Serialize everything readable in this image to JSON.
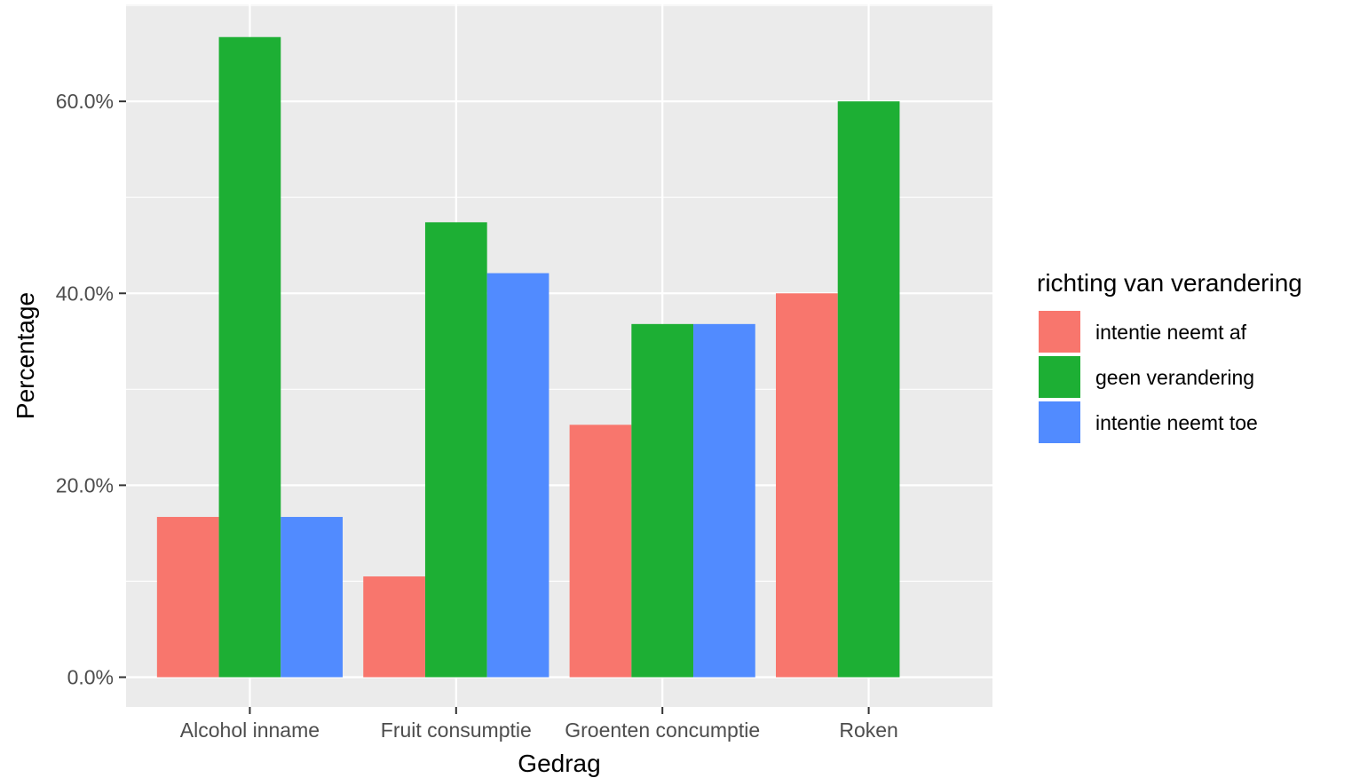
{
  "chart_data": {
    "type": "bar",
    "xlabel": "Gedrag",
    "ylabel": "Percentage",
    "categories": [
      "Alcohol inname",
      "Fruit consumptie",
      "Groenten concumptie",
      "Roken"
    ],
    "series": [
      {
        "name": "intentie neemt af",
        "color": "#F8766D",
        "values": [
          16.7,
          10.5,
          26.3,
          40.0
        ]
      },
      {
        "name": "geen verandering",
        "color": "#1DAF34",
        "values": [
          66.7,
          47.4,
          36.8,
          60.0
        ]
      },
      {
        "name": "intentie neemt toe",
        "color": "#518BFF",
        "values": [
          16.7,
          42.1,
          36.8,
          null
        ]
      }
    ],
    "ylim": [
      -3.1,
      70.1
    ],
    "yticks": [
      0,
      20,
      40,
      60
    ],
    "ytick_labels": [
      "0.0%",
      "20.0%",
      "40.0%",
      "60.0%"
    ],
    "grid": true,
    "panel_background": "#EBEBEB",
    "legend": {
      "title": "richting van verandering",
      "position": "right"
    }
  }
}
